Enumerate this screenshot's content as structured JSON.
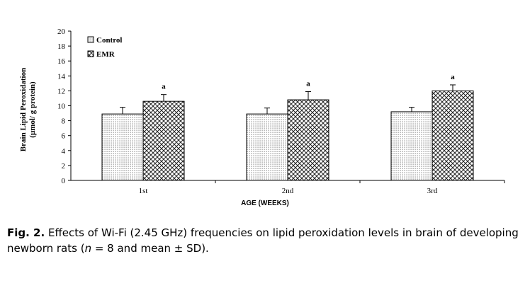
{
  "chart_data": {
    "type": "bar",
    "ylabel": "Brain Lipid Peroxidation",
    "ylabel_unit": "(μmol/ g protein)",
    "xlabel": "AGE (WEEKS)",
    "categories": [
      "1st",
      "2nd",
      "3rd"
    ],
    "ylim": [
      0,
      20
    ],
    "yticks": [
      "0",
      "2",
      "4",
      "6",
      "8",
      "10",
      "12",
      "14",
      "16",
      "18",
      "20"
    ],
    "legend_position": "top-left",
    "series": [
      {
        "name": "Control",
        "values": [
          8.9,
          8.9,
          9.2
        ],
        "errors": [
          0.9,
          0.8,
          0.6
        ],
        "pattern": "dotted"
      },
      {
        "name": "EMR",
        "values": [
          10.6,
          10.8,
          12.0
        ],
        "errors": [
          0.9,
          1.1,
          0.8
        ],
        "pattern": "crosshatch"
      }
    ],
    "annotations": [
      "a",
      "a",
      "a"
    ]
  },
  "caption": {
    "label": "Fig. 2.",
    "text1": "Effects of Wi-Fi (2.45 GHz) frequencies on lipid peroxidation levels in brain of developing newborn rats (",
    "n_symbol": "n",
    "text2": " = 8 and mean ± SD)."
  }
}
